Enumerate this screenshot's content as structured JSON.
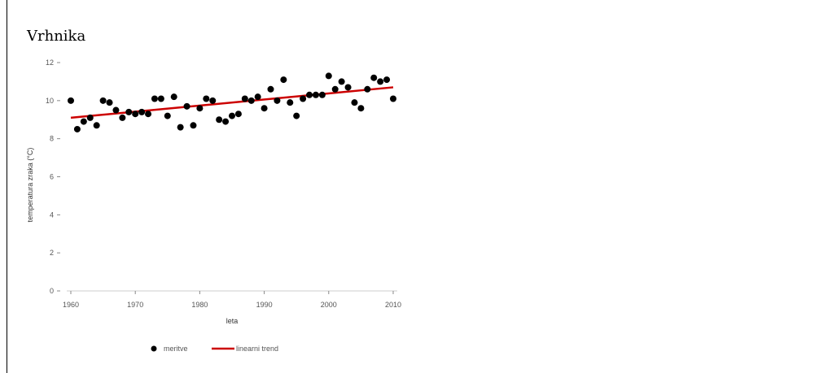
{
  "chart_data": {
    "type": "scatter",
    "title": "Vrhnika",
    "xlabel": "leta",
    "ylabel": "temperatura zraka (°C)",
    "xlim": [
      1960,
      2010
    ],
    "ylim": [
      0,
      12
    ],
    "xticks": [
      1960,
      1970,
      1980,
      1990,
      2000,
      2010
    ],
    "yticks": [
      0,
      2,
      4,
      6,
      8,
      10,
      12
    ],
    "grid": false,
    "legend": "bottom",
    "series": [
      {
        "name": "meritve",
        "kind": "points",
        "color": "#000000",
        "x": [
          1960,
          1961,
          1962,
          1963,
          1964,
          1965,
          1966,
          1967,
          1968,
          1969,
          1970,
          1971,
          1972,
          1973,
          1974,
          1975,
          1976,
          1977,
          1978,
          1979,
          1980,
          1981,
          1982,
          1983,
          1984,
          1985,
          1986,
          1987,
          1988,
          1989,
          1990,
          1991,
          1992,
          1993,
          1994,
          1995,
          1996,
          1997,
          1998,
          1999,
          2000,
          2001,
          2002,
          2003,
          2004,
          2005,
          2006,
          2007,
          2008,
          2009,
          2010
        ],
        "y": [
          10.0,
          8.5,
          8.9,
          9.1,
          8.7,
          10.0,
          9.9,
          9.5,
          9.1,
          9.4,
          9.3,
          9.4,
          9.3,
          10.1,
          10.1,
          9.2,
          10.2,
          8.6,
          9.7,
          8.7,
          9.6,
          10.1,
          10.0,
          9.0,
          8.9,
          9.2,
          9.3,
          10.1,
          10.0,
          10.2,
          9.6,
          10.6,
          10.0,
          11.1,
          9.9,
          9.2,
          10.1,
          10.3,
          10.3,
          10.3,
          11.3,
          10.6,
          11.0,
          10.7,
          9.9,
          9.6,
          10.6,
          11.2,
          11.0,
          11.1,
          10.1
        ]
      },
      {
        "name": "linearni trend",
        "kind": "line",
        "color": "#cc0000",
        "x": [
          1960,
          2010
        ],
        "y": [
          9.1,
          10.7
        ]
      }
    ]
  }
}
